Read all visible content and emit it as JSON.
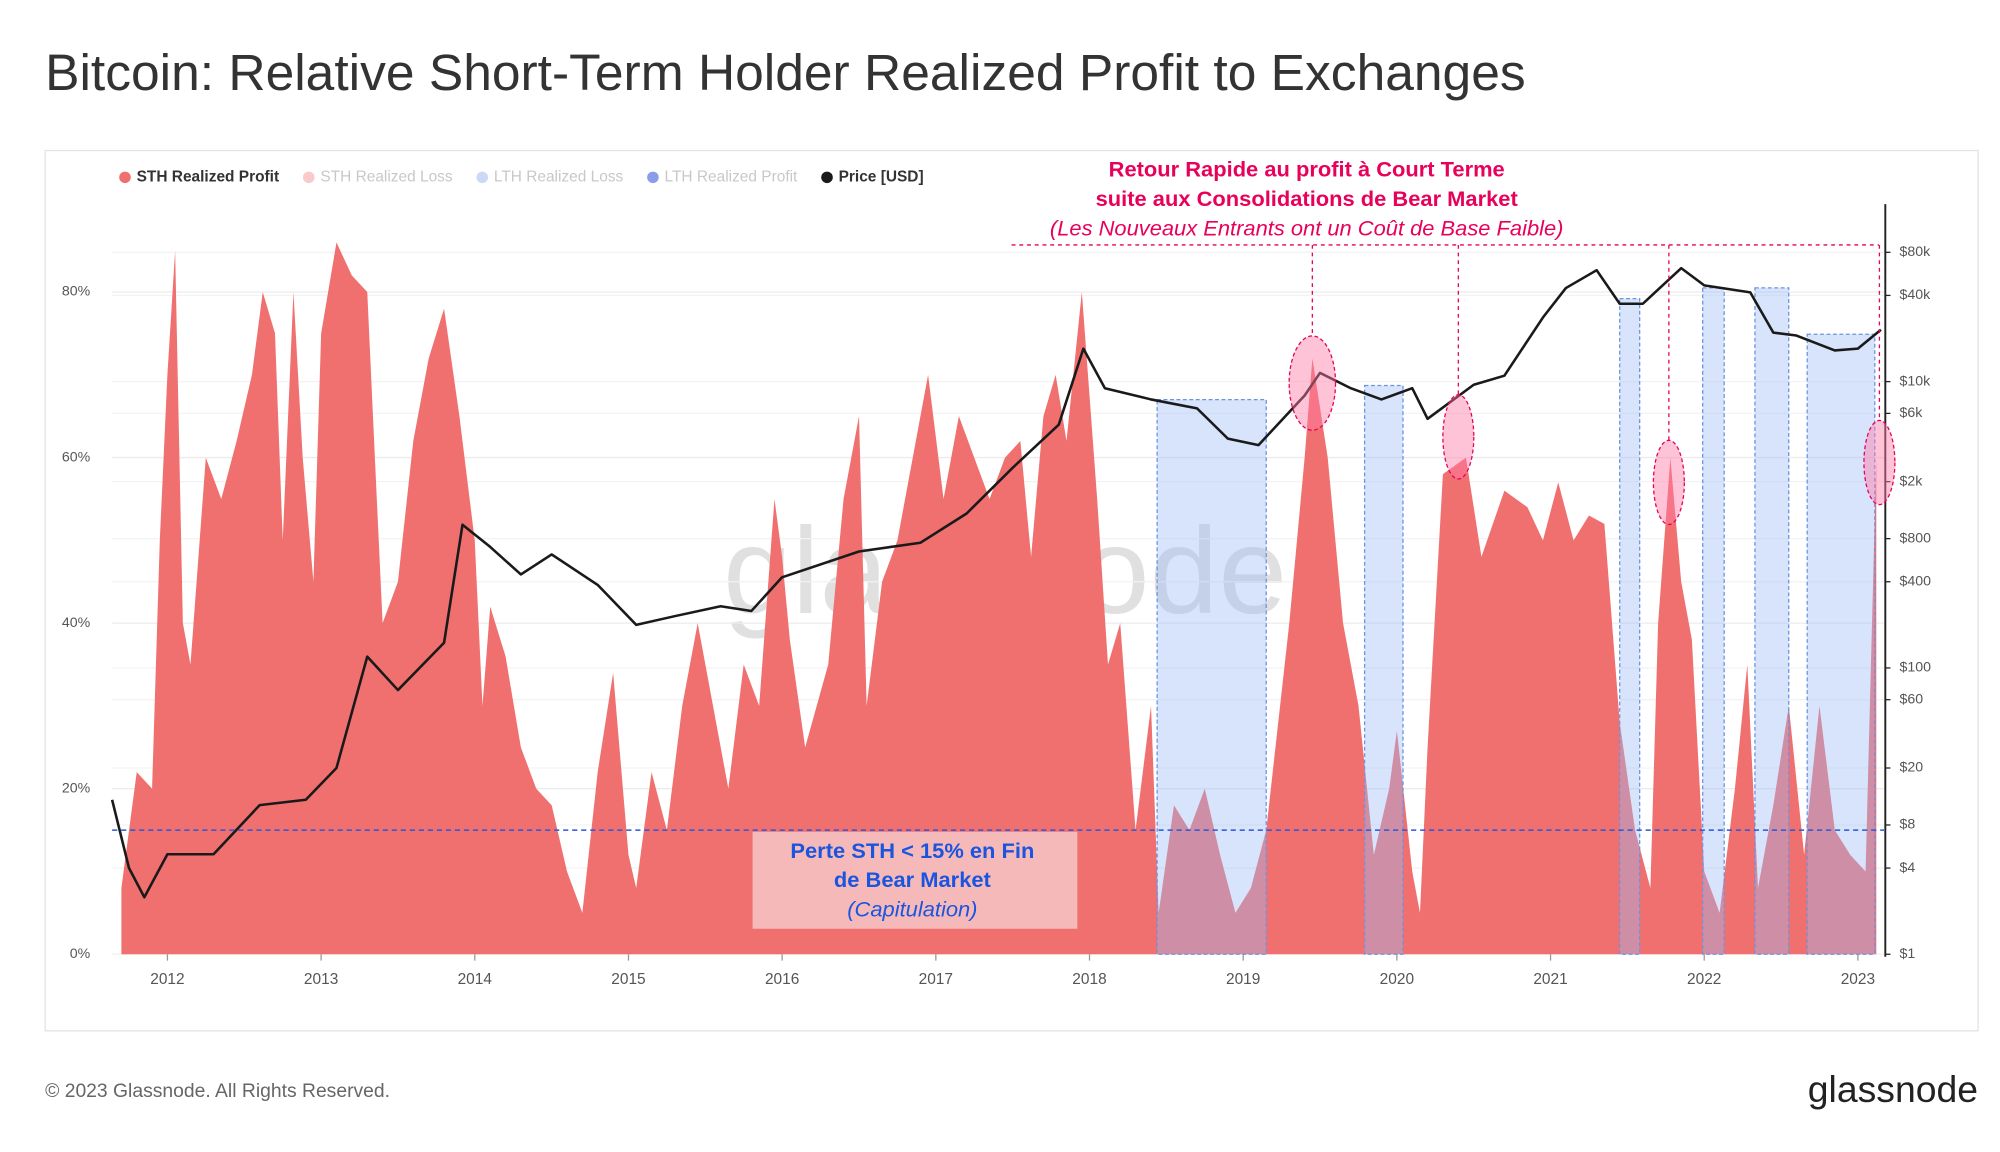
{
  "chart_data": {
    "type": "area",
    "title": "Bitcoin: Relative Short-Term Holder Realized Profit to Exchanges",
    "watermark": "glassnode",
    "footer": "© 2023 Glassnode. All Rights Reserved.",
    "logo": "glassnode",
    "xlim": [
      2011.64,
      2023.17
    ],
    "xticks": [
      2012,
      2013,
      2014,
      2015,
      2016,
      2017,
      2018,
      2019,
      2020,
      2021,
      2022,
      2023
    ],
    "ylim": [
      0,
      90
    ],
    "yticks": [
      {
        "value": 0,
        "label": "0%"
      },
      {
        "value": 20,
        "label": "20%"
      },
      {
        "value": 40,
        "label": "40%"
      },
      {
        "value": 60,
        "label": "60%"
      },
      {
        "value": 80,
        "label": "80%"
      }
    ],
    "y2lim": [
      1,
      160000
    ],
    "y2log": true,
    "y2ticks": [
      {
        "value": 1,
        "label": "$1"
      },
      {
        "value": 4,
        "label": "$4"
      },
      {
        "value": 8,
        "label": "$8"
      },
      {
        "value": 20,
        "label": "$20"
      },
      {
        "value": 60,
        "label": "$60"
      },
      {
        "value": 100,
        "label": "$100"
      },
      {
        "value": 400,
        "label": "$400"
      },
      {
        "value": 800,
        "label": "$800"
      },
      {
        "value": 2000,
        "label": "$2k"
      },
      {
        "value": 6000,
        "label": "$6k"
      },
      {
        "value": 10000,
        "label": "$10k"
      },
      {
        "value": 40000,
        "label": "$40k"
      },
      {
        "value": 80000,
        "label": "$80k"
      }
    ],
    "grid": true,
    "legend": "top-left",
    "series": [
      {
        "name": "STH Realized Profit",
        "color": "#f07070",
        "type": "area",
        "x": [
          2011.7,
          2011.8,
          2011.9,
          2011.95,
          2012.0,
          2012.05,
          2012.1,
          2012.15,
          2012.25,
          2012.35,
          2012.45,
          2012.55,
          2012.62,
          2012.7,
          2012.75,
          2012.82,
          2012.88,
          2012.95,
          2013.0,
          2013.1,
          2013.2,
          2013.3,
          2013.35,
          2013.4,
          2013.5,
          2013.6,
          2013.7,
          2013.8,
          2013.9,
          2014.0,
          2014.05,
          2014.1,
          2014.2,
          2014.3,
          2014.4,
          2014.5,
          2014.6,
          2014.7,
          2014.8,
          2014.9,
          2015.0,
          2015.05,
          2015.15,
          2015.25,
          2015.35,
          2015.45,
          2015.55,
          2015.65,
          2015.75,
          2015.85,
          2015.95,
          2016.0,
          2016.05,
          2016.15,
          2016.3,
          2016.4,
          2016.5,
          2016.55,
          2016.65,
          2016.75,
          2016.85,
          2016.95,
          2017.05,
          2017.15,
          2017.25,
          2017.35,
          2017.45,
          2017.55,
          2017.62,
          2017.7,
          2017.78,
          2017.85,
          2017.95,
          2018.05,
          2018.12,
          2018.2,
          2018.3,
          2018.4,
          2018.45,
          2018.55,
          2018.65,
          2018.75,
          2018.85,
          2018.95,
          2019.05,
          2019.15,
          2019.3,
          2019.4,
          2019.45,
          2019.55,
          2019.65,
          2019.75,
          2019.85,
          2019.95,
          2020.0,
          2020.1,
          2020.15,
          2020.2,
          2020.3,
          2020.45,
          2020.55,
          2020.7,
          2020.85,
          2020.95,
          2021.05,
          2021.15,
          2021.25,
          2021.35,
          2021.45,
          2021.55,
          2021.65,
          2021.7,
          2021.78,
          2021.85,
          2021.92,
          2022.0,
          2022.1,
          2022.2,
          2022.28,
          2022.35,
          2022.45,
          2022.55,
          2022.65,
          2022.75,
          2022.85,
          2022.95,
          2023.05,
          2023.12
        ],
        "values": [
          8,
          22,
          20,
          50,
          70,
          85,
          40,
          35,
          60,
          55,
          62,
          70,
          80,
          75,
          50,
          80,
          60,
          45,
          75,
          86,
          82,
          80,
          60,
          40,
          45,
          62,
          72,
          78,
          65,
          50,
          30,
          42,
          36,
          25,
          20,
          18,
          10,
          5,
          22,
          34,
          12,
          8,
          22,
          15,
          30,
          40,
          30,
          20,
          35,
          30,
          55,
          48,
          38,
          25,
          35,
          55,
          65,
          30,
          45,
          50,
          60,
          70,
          55,
          65,
          60,
          55,
          60,
          62,
          48,
          65,
          70,
          62,
          80,
          55,
          35,
          40,
          15,
          30,
          5,
          18,
          15,
          20,
          12,
          5,
          8,
          15,
          40,
          60,
          72,
          60,
          40,
          30,
          12,
          20,
          27,
          10,
          5,
          25,
          58,
          60,
          48,
          56,
          54,
          50,
          57,
          50,
          53,
          52,
          28,
          15,
          8,
          40,
          60,
          45,
          38,
          10,
          5,
          20,
          35,
          8,
          18,
          30,
          12,
          30,
          15,
          12,
          10,
          60
        ]
      },
      {
        "name": "STH Realized Loss",
        "color": "#f4a6a6",
        "hidden": true
      },
      {
        "name": "LTH Realized Loss",
        "color": "#a8bff0",
        "hidden": true
      },
      {
        "name": "LTH Realized Profit",
        "color": "#3b5bdb",
        "hidden": true
      },
      {
        "name": "Price [USD]",
        "color": "#1a1a1a",
        "type": "line",
        "axis": "y2",
        "x": [
          2011.64,
          2011.75,
          2011.85,
          2012.0,
          2012.3,
          2012.6,
          2012.9,
          2013.1,
          2013.3,
          2013.5,
          2013.8,
          2013.92,
          2014.1,
          2014.3,
          2014.5,
          2014.8,
          2015.05,
          2015.3,
          2015.6,
          2015.8,
          2016.0,
          2016.5,
          2016.9,
          2017.2,
          2017.5,
          2017.8,
          2017.96,
          2018.1,
          2018.4,
          2018.7,
          2018.9,
          2019.1,
          2019.4,
          2019.5,
          2019.7,
          2019.9,
          2020.1,
          2020.2,
          2020.5,
          2020.7,
          2020.95,
          2021.1,
          2021.3,
          2021.45,
          2021.6,
          2021.85,
          2022.0,
          2022.3,
          2022.45,
          2022.6,
          2022.85,
          2023.0,
          2023.15
        ],
        "values": [
          12,
          4,
          2.5,
          5,
          5,
          11,
          12,
          20,
          120,
          70,
          150,
          1000,
          700,
          450,
          620,
          380,
          200,
          230,
          270,
          250,
          430,
          650,
          750,
          1200,
          2500,
          5000,
          17000,
          9000,
          7500,
          6500,
          4000,
          3600,
          8000,
          11500,
          9000,
          7500,
          9000,
          5500,
          9500,
          11000,
          28000,
          45000,
          60000,
          35000,
          35000,
          62000,
          47000,
          42000,
          22000,
          21000,
          16500,
          17000,
          23000
        ]
      }
    ],
    "threshold": 15,
    "highlight_ranges": [
      {
        "x": [
          2018.44,
          2019.15
        ],
        "top": 67
      },
      {
        "x": [
          2019.79,
          2020.04
        ],
        "top": 68.7
      },
      {
        "x": [
          2021.45,
          2021.58
        ],
        "top": 79.2
      },
      {
        "x": [
          2021.99,
          2022.13
        ],
        "top": 80.5
      },
      {
        "x": [
          2022.33,
          2022.55
        ],
        "top": 80.5
      },
      {
        "x": [
          2022.67,
          2023.11
        ],
        "top": 74.9
      }
    ],
    "highlight_points": [
      {
        "x": 2019.45,
        "y": 69
      },
      {
        "x": 2020.4,
        "y": 62.5
      },
      {
        "x": 2021.77,
        "y": 57
      },
      {
        "x": 2023.14,
        "y": 59.4
      }
    ],
    "annotations": [
      {
        "lines": [
          "Retour Rapide au profit à Court Terme",
          "suite aux Consolidations de Bear Market"
        ],
        "note": "(Les Nouveaux Entrants ont un Coût de Base Faible)"
      },
      {
        "lines": [
          "Perte STH < 15% en Fin",
          "de Bear Market"
        ],
        "note": "(Capitulation)"
      }
    ]
  }
}
